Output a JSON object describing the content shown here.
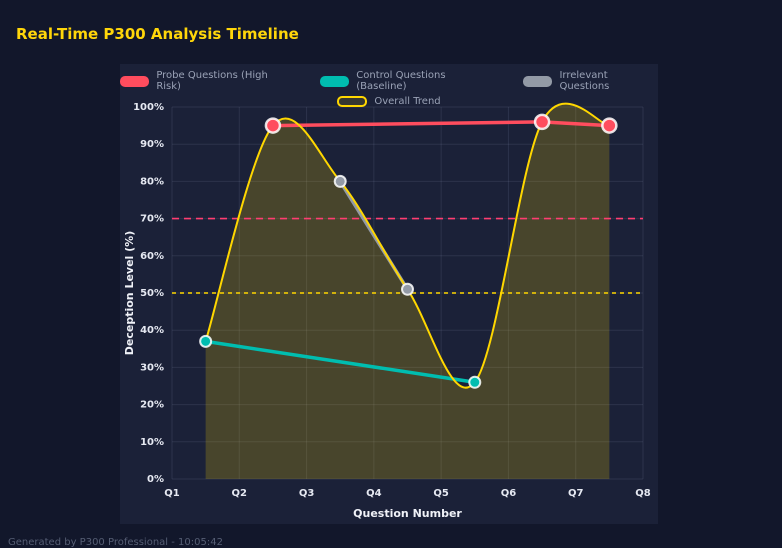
{
  "page": {
    "title": "Real-Time P300 Analysis Timeline",
    "footer": "Generated by P300 Professional - 10:05:42"
  },
  "colors": {
    "background": "#12172b",
    "canvas": "#1b2138",
    "title": "#ffd60a",
    "grid": "rgba(173,181,210,0.12)",
    "tick_text": "#e6e9f2",
    "axis_title_text": "#f0f2f8",
    "legend_text": "#9aa2b6"
  },
  "chart_data": {
    "type": "line",
    "title": "Real-Time P300 Analysis Timeline",
    "xlabel": "Question Number",
    "ylabel": "Deception Level (%)",
    "x_ticks": [
      "Q1",
      "Q2",
      "Q3",
      "Q4",
      "Q5",
      "Q6",
      "Q7",
      "Q8"
    ],
    "x_range": [
      1,
      8
    ],
    "y_ticks": [
      "0%",
      "10%",
      "20%",
      "30%",
      "40%",
      "50%",
      "60%",
      "70%",
      "80%",
      "90%",
      "100%"
    ],
    "ylim": [
      0,
      100
    ],
    "grid": true,
    "legend_position": "top",
    "series": [
      {
        "name": "Probe Questions (High Risk)",
        "color": "#ff4d5e",
        "smooth": false,
        "fill": false,
        "markers": true,
        "points": [
          {
            "x": 2.5,
            "y": 95
          },
          {
            "x": 6.5,
            "y": 96
          },
          {
            "x": 7.5,
            "y": 95
          }
        ]
      },
      {
        "name": "Control Questions (Baseline)",
        "color": "#00bdb0",
        "smooth": false,
        "fill": false,
        "markers": true,
        "points": [
          {
            "x": 1.5,
            "y": 37
          },
          {
            "x": 5.5,
            "y": 26
          }
        ]
      },
      {
        "name": "Irrelevant Questions",
        "color": "#939aa6",
        "smooth": false,
        "fill": false,
        "markers": true,
        "points": [
          {
            "x": 3.5,
            "y": 80
          },
          {
            "x": 4.5,
            "y": 51
          }
        ]
      },
      {
        "name": "Overall Trend",
        "color": "#ffd700",
        "smooth": true,
        "fill": true,
        "markers": false,
        "points": [
          {
            "x": 1.5,
            "y": 37
          },
          {
            "x": 2.5,
            "y": 95
          },
          {
            "x": 3.5,
            "y": 80
          },
          {
            "x": 4.5,
            "y": 51
          },
          {
            "x": 5.5,
            "y": 26
          },
          {
            "x": 6.5,
            "y": 96
          },
          {
            "x": 7.5,
            "y": 95
          }
        ]
      }
    ],
    "thresholds": [
      {
        "value": 70,
        "color": "#ff3d71",
        "style": "dashed"
      },
      {
        "value": 50,
        "color": "#ffd700",
        "style": "dashed"
      }
    ]
  }
}
